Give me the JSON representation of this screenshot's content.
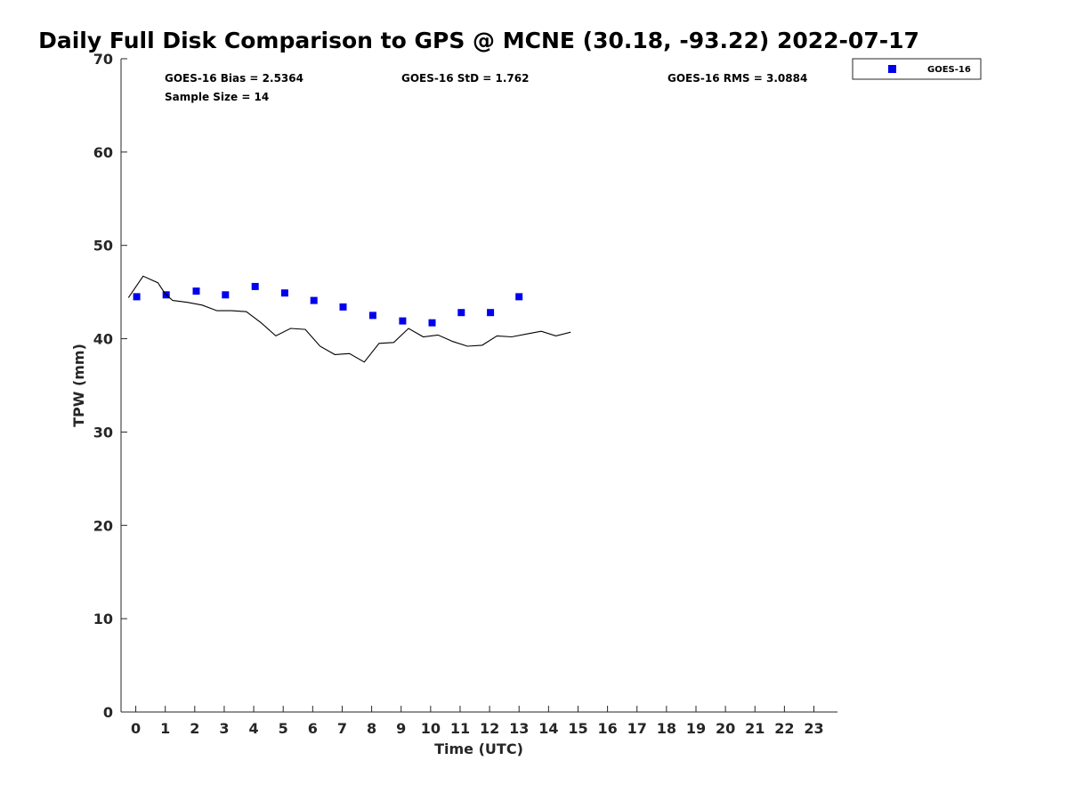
{
  "chart_data": {
    "type": "scatter",
    "title": "Daily Full Disk Comparison to GPS @ MCNE (30.18, -93.22) 2022-07-17",
    "xlabel": "Time (UTC)",
    "ylabel": "TPW (mm)",
    "xlim": [
      -0.5,
      23.8
    ],
    "ylim": [
      0,
      70
    ],
    "xticks": [
      "0",
      "1",
      "2",
      "3",
      "4",
      "5",
      "6",
      "7",
      "8",
      "9",
      "10",
      "11",
      "12",
      "13",
      "14",
      "15",
      "16",
      "17",
      "18",
      "19",
      "20",
      "21",
      "22",
      "23"
    ],
    "yticks": [
      "0",
      "10",
      "20",
      "30",
      "40",
      "50",
      "60",
      "70"
    ],
    "grid": false,
    "legend_position": "top-right",
    "stats": {
      "bias": "GOES-16 Bias = 2.5364",
      "std": "GOES-16 StD = 1.762",
      "rms": "GOES-16 RMS = 3.0884",
      "sample_size": "Sample Size = 14"
    },
    "series": [
      {
        "name": "GOES-16",
        "kind": "scatter",
        "color": "#0000ee",
        "x": [
          0.03,
          1.03,
          2.05,
          3.04,
          4.05,
          5.05,
          6.04,
          7.03,
          8.04,
          9.05,
          10.05,
          11.04,
          12.03,
          13.0
        ],
        "y": [
          44.5,
          44.7,
          45.1,
          44.7,
          45.6,
          44.9,
          44.1,
          43.4,
          42.5,
          41.9,
          41.7,
          42.8,
          42.8,
          44.5
        ]
      },
      {
        "kind": "line",
        "color": "#000000",
        "x": [
          -0.25,
          0.25,
          0.75,
          1.0,
          1.25,
          1.75,
          2.25,
          2.75,
          3.25,
          3.75,
          4.25,
          4.75,
          5.25,
          5.75,
          6.25,
          6.75,
          7.25,
          7.75,
          8.25,
          8.75,
          9.25,
          9.75,
          10.25,
          10.75,
          11.25,
          11.75,
          12.25,
          12.75,
          13.25,
          13.75,
          14.25,
          14.75
        ],
        "y": [
          44.4,
          46.7,
          46.0,
          44.8,
          44.1,
          43.9,
          43.6,
          43.0,
          43.0,
          42.9,
          41.7,
          40.3,
          41.1,
          41.0,
          39.2,
          38.3,
          38.4,
          37.5,
          39.5,
          39.6,
          41.1,
          40.2,
          40.4,
          39.7,
          39.2,
          39.3,
          40.3,
          40.2,
          40.5,
          40.8,
          40.3,
          40.7
        ]
      }
    ]
  }
}
